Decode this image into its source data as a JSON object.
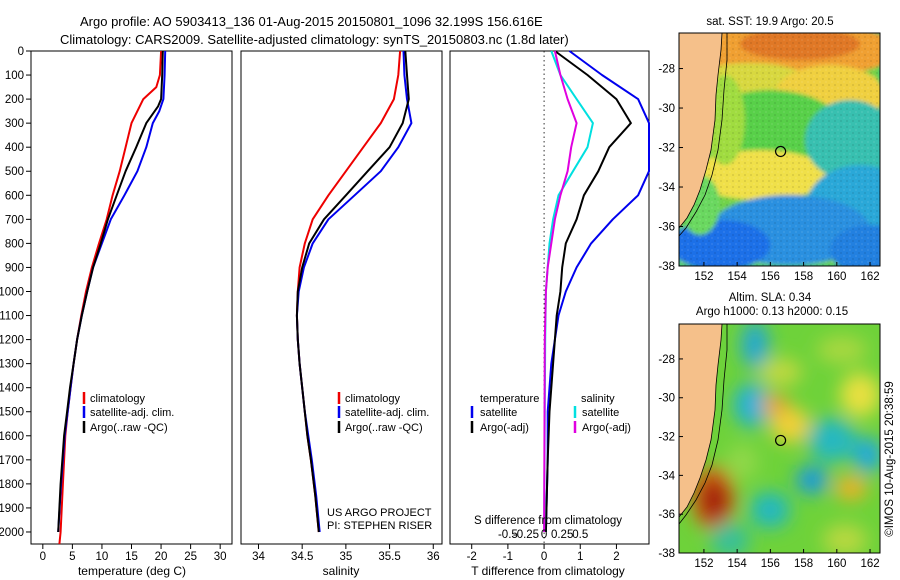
{
  "header": {
    "line1": "Argo profile: AO 5903413_136 01-Aug-2015 20150801_1096 32.199S 156.616E",
    "line2": "Climatology: CARS2009. Satellite-adjusted climatology: synTS_20150803.nc (1.8d later)"
  },
  "colors": {
    "climatology": "#ee0000",
    "satellite": "#0000ee",
    "argo": "#000000",
    "argo_salinity_diff": "#e000e0",
    "satellite_salinity_diff": "#00e0e0",
    "land": "#f5c08a"
  },
  "credits": {
    "project": "US ARGO PROJECT",
    "pi": "PI: STEPHEN RISER",
    "stamp": "©IMOS 10-Aug-2015 20:38:59"
  },
  "chart_data": [
    {
      "type": "line",
      "id": "temperature",
      "xlabel": "temperature (deg C)",
      "ylabel": "",
      "xlim": [
        -2,
        32
      ],
      "ylim": [
        2050,
        0
      ],
      "xticks": [
        0,
        5,
        10,
        15,
        20,
        25,
        30
      ],
      "yticks": [
        0,
        100,
        200,
        300,
        400,
        500,
        600,
        700,
        800,
        900,
        1000,
        1100,
        1200,
        1300,
        1400,
        1500,
        1600,
        1700,
        1800,
        1900,
        2000
      ],
      "legend": [
        "climatology",
        "satellite-adj. clim.",
        "Argo(..raw -QC)"
      ],
      "series": [
        {
          "name": "climatology",
          "color": "#ee0000",
          "x": [
            20.0,
            19.8,
            19.2,
            17.0,
            15.0,
            14.0,
            13.0,
            11.8,
            10.8,
            9.5,
            8.3,
            7.3,
            6.5,
            5.8,
            5.2,
            4.7,
            4.2,
            3.8,
            3.4,
            3.0,
            2.8
          ],
          "y": [
            0,
            100,
            150,
            200,
            300,
            400,
            500,
            600,
            700,
            800,
            900,
            1000,
            1100,
            1200,
            1300,
            1400,
            1500,
            1600,
            1800,
            2000,
            2050
          ]
        },
        {
          "name": "satellite-adj. clim.",
          "color": "#0000ee",
          "x": [
            20.7,
            20.6,
            20.4,
            19.7,
            18.6,
            17.5,
            16.0,
            13.8,
            11.5,
            10.0,
            8.5,
            7.5,
            6.6,
            5.8,
            5.2,
            4.7,
            4.2,
            3.7,
            3.1,
            2.6
          ],
          "y": [
            0,
            100,
            200,
            250,
            300,
            400,
            500,
            600,
            700,
            800,
            900,
            1000,
            1100,
            1200,
            1300,
            1400,
            1500,
            1600,
            1800,
            2000
          ]
        },
        {
          "name": "Argo(..raw -QC)",
          "color": "#000000",
          "x": [
            20.3,
            20.2,
            20.0,
            19.5,
            17.5,
            15.8,
            14.0,
            12.5,
            11.0,
            9.8,
            8.5,
            7.5,
            6.6,
            5.8,
            5.2,
            4.6,
            4.1,
            3.6,
            3.0,
            2.6
          ],
          "y": [
            0,
            100,
            200,
            230,
            300,
            400,
            500,
            600,
            700,
            800,
            900,
            1000,
            1100,
            1200,
            1300,
            1400,
            1500,
            1600,
            1800,
            2000
          ]
        }
      ]
    },
    {
      "type": "line",
      "id": "salinity",
      "xlabel": "salinity",
      "xlim": [
        33.8,
        36.1
      ],
      "ylim": [
        2050,
        0
      ],
      "xticks": [
        34,
        34.5,
        35,
        35.5,
        36
      ],
      "legend": [
        "climatology",
        "satellite-adj. clim.",
        "Argo(..raw -QC)"
      ],
      "series": [
        {
          "name": "climatology",
          "color": "#ee0000",
          "x": [
            35.62,
            35.6,
            35.55,
            35.4,
            35.2,
            35.0,
            34.8,
            34.62,
            34.53,
            34.47,
            34.45,
            34.44,
            34.45,
            34.47,
            34.5,
            34.53,
            34.56,
            34.6,
            34.65,
            34.69
          ],
          "y": [
            0,
            100,
            200,
            300,
            400,
            500,
            600,
            700,
            800,
            900,
            1000,
            1100,
            1200,
            1300,
            1400,
            1500,
            1600,
            1700,
            1850,
            2000
          ]
        },
        {
          "name": "satellite-adj. clim.",
          "color": "#0000ee",
          "x": [
            35.66,
            35.67,
            35.7,
            35.75,
            35.6,
            35.4,
            35.1,
            34.8,
            34.62,
            34.52,
            34.46,
            34.44,
            34.45,
            34.47,
            34.5,
            34.53,
            34.57,
            34.61,
            34.66,
            34.7
          ],
          "y": [
            0,
            100,
            200,
            300,
            400,
            500,
            600,
            700,
            800,
            900,
            1000,
            1100,
            1200,
            1300,
            1400,
            1500,
            1600,
            1700,
            1850,
            2000
          ]
        },
        {
          "name": "Argo(..raw -QC)",
          "color": "#000000",
          "x": [
            35.68,
            35.7,
            35.72,
            35.65,
            35.5,
            35.25,
            35.0,
            34.75,
            34.58,
            34.5,
            34.45,
            34.44,
            34.45,
            34.47,
            34.5,
            34.53,
            34.56,
            34.6,
            34.65,
            34.69
          ],
          "y": [
            0,
            100,
            200,
            300,
            400,
            500,
            600,
            700,
            800,
            900,
            1000,
            1100,
            1200,
            1300,
            1400,
            1500,
            1600,
            1700,
            1850,
            2000
          ]
        }
      ]
    },
    {
      "type": "line",
      "id": "difference",
      "xlabel": "T difference from climatology",
      "xlabel2": "S difference from climatology",
      "xlim": [
        -2.6,
        2.9
      ],
      "ylim": [
        2050,
        0
      ],
      "xticks": [
        -2,
        -1,
        0,
        1,
        2
      ],
      "xticks2": [
        "-0.5",
        "-0.25",
        "0",
        "0.25",
        "0.5"
      ],
      "legend_headers": [
        "temperature",
        "salinity"
      ],
      "legend": [
        "satellite",
        "Argo(-adj)",
        "satellite",
        "Argo(-adj)"
      ],
      "series": [
        {
          "name": "satellite",
          "color": "#0000ee",
          "x": [
            0.7,
            1.6,
            2.6,
            3.0,
            3.0,
            3.0,
            2.6,
            1.9,
            1.3,
            0.9,
            0.6,
            0.4,
            0.3,
            0.2,
            0.15,
            0.1,
            0.1,
            0.05
          ],
          "y": [
            0,
            100,
            200,
            300,
            400,
            500,
            600,
            700,
            800,
            900,
            1000,
            1100,
            1200,
            1300,
            1400,
            1500,
            1700,
            2000
          ]
        },
        {
          "name": "Argo(-adj)",
          "color": "#000000",
          "x": [
            0.3,
            1.2,
            2.0,
            2.4,
            1.8,
            1.5,
            1.1,
            0.9,
            0.6,
            0.5,
            0.45,
            0.35,
            0.3,
            0.25,
            0.2,
            0.15,
            0.1,
            0.05
          ],
          "y": [
            0,
            100,
            200,
            300,
            400,
            500,
            600,
            700,
            800,
            900,
            1000,
            1100,
            1200,
            1300,
            1400,
            1500,
            1700,
            2000
          ]
        },
        {
          "name": "satellite",
          "color": "#00e0e0",
          "x": [
            0.2,
            0.45,
            0.9,
            1.35,
            1.2,
            0.8,
            0.4,
            0.25,
            0.15,
            0.1,
            0.05,
            0.03,
            0.0
          ],
          "y": [
            0,
            100,
            200,
            300,
            400,
            500,
            600,
            700,
            800,
            900,
            1000,
            1200,
            2000
          ]
        },
        {
          "name": "Argo(-adj)",
          "color": "#e000e0",
          "x": [
            0.3,
            0.45,
            0.65,
            0.9,
            0.75,
            0.65,
            0.45,
            0.3,
            0.2,
            0.1,
            0.05,
            0.02,
            0.0
          ],
          "y": [
            0,
            100,
            200,
            300,
            400,
            500,
            600,
            700,
            800,
            900,
            1000,
            1200,
            2000
          ]
        }
      ]
    },
    {
      "type": "heatmap",
      "id": "sst-map",
      "title": "sat. SST: 19.9 Argo: 20.5",
      "xlim": [
        150.5,
        162.6
      ],
      "ylim": [
        -38,
        -26.2
      ],
      "xticks": [
        152,
        154,
        156,
        158,
        160,
        162
      ],
      "yticks": [
        -28,
        -30,
        -32,
        -34,
        -36,
        -38
      ],
      "float_position": {
        "lon": 156.616,
        "lat": -32.199
      }
    },
    {
      "type": "heatmap",
      "id": "sla-map",
      "title": "Altim. SLA: 0.34",
      "subtitle": "Argo h1000: 0.13 h2000: 0.15",
      "xlim": [
        150.5,
        162.6
      ],
      "ylim": [
        -38,
        -26.2
      ],
      "xticks": [
        152,
        154,
        156,
        158,
        160,
        162
      ],
      "yticks": [
        -28,
        -30,
        -32,
        -34,
        -36,
        -38
      ],
      "float_position": {
        "lon": 156.616,
        "lat": -32.199
      }
    }
  ]
}
